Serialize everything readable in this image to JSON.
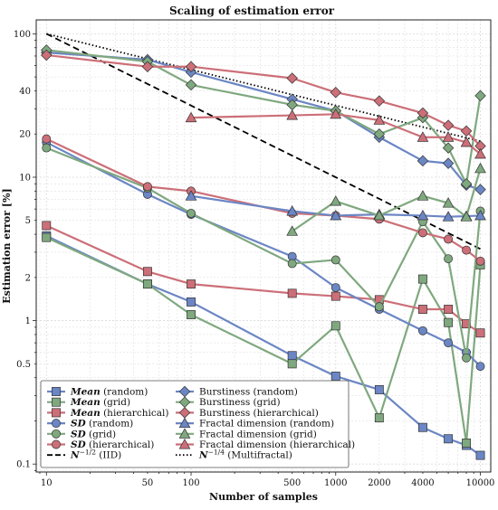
{
  "chart_data": {
    "type": "line",
    "title": "Scaling of estimation error",
    "xlabel": "Number of samples",
    "ylabel": "Estimation error [%]",
    "x_scale": "log",
    "y_scale": "log",
    "xlim": [
      8.5,
      11800
    ],
    "ylim": [
      0.088,
      125
    ],
    "grid": true,
    "legend_position": "bottom-left",
    "x_ticks": [
      10,
      50,
      100,
      500,
      1000,
      2000,
      4000,
      10000
    ],
    "x_tick_labels": [
      "10",
      "50",
      "100",
      "500",
      "1000",
      "2000",
      "4000",
      "10000"
    ],
    "y_ticks": [
      0.1,
      0.5,
      1,
      2,
      5,
      10,
      20,
      40,
      100
    ],
    "y_tick_labels": [
      "0.1",
      "0.5",
      "1",
      "2",
      "5",
      "10",
      "20",
      "40",
      "100"
    ],
    "colors": {
      "random": "#6b86c4",
      "grid": "#7fa87f",
      "hierarchical": "#cc6f78"
    },
    "x": [
      10,
      50,
      100,
      500,
      1000,
      2000,
      4000,
      6000,
      8000,
      10000
    ],
    "series": [
      {
        "name": "Mean (random)",
        "label_italic": "Mean",
        "label_rest": " (random)",
        "color": "random",
        "marker": "square",
        "style": "solid",
        "values": [
          3.9,
          1.8,
          1.35,
          0.57,
          0.41,
          0.33,
          0.18,
          0.15,
          0.135,
          0.115
        ]
      },
      {
        "name": "Mean (grid)",
        "label_italic": "Mean",
        "label_rest": " (grid)",
        "color": "grid",
        "marker": "square",
        "style": "solid",
        "values": [
          3.8,
          1.8,
          1.1,
          0.5,
          0.92,
          0.21,
          1.95,
          0.97,
          0.14,
          2.45
        ]
      },
      {
        "name": "Mean (hierarchical)",
        "label_italic": "Mean",
        "label_rest": " (hierarchical)",
        "color": "hierarchical",
        "marker": "square",
        "style": "solid",
        "values": [
          4.6,
          2.2,
          1.8,
          1.55,
          1.48,
          1.4,
          1.2,
          1.2,
          0.95,
          0.82
        ]
      },
      {
        "name": "SD (random)",
        "label_italic": "SD",
        "label_rest": " (random)",
        "color": "random",
        "marker": "circle",
        "style": "solid",
        "values": [
          17.5,
          7.6,
          5.5,
          2.8,
          1.7,
          1.2,
          0.85,
          0.7,
          0.6,
          0.48
        ]
      },
      {
        "name": "SD (grid)",
        "label_italic": "SD",
        "label_rest": " (grid)",
        "color": "grid",
        "marker": "circle",
        "style": "solid",
        "values": [
          16.0,
          8.4,
          5.6,
          2.5,
          2.65,
          1.25,
          4.9,
          2.7,
          0.55,
          5.8
        ]
      },
      {
        "name": "SD (hierarchical)",
        "label_italic": "SD",
        "label_rest": " (hierarchical)",
        "color": "hierarchical",
        "marker": "circle",
        "style": "solid",
        "values": [
          18.5,
          8.6,
          8.0,
          5.6,
          5.4,
          5.1,
          4.1,
          3.7,
          3.1,
          2.6
        ]
      },
      {
        "name": "Burstiness (random)",
        "label_italic": "",
        "label_rest": "Burstiness (random)",
        "color": "random",
        "marker": "diamond",
        "style": "solid",
        "values": [
          74,
          66,
          54,
          35,
          29,
          19,
          13,
          12.5,
          8.8,
          8.2
        ]
      },
      {
        "name": "Burstiness (grid)",
        "label_italic": "",
        "label_rest": "Burstiness (grid)",
        "color": "grid",
        "marker": "diamond",
        "style": "solid",
        "values": [
          77,
          64,
          44,
          32,
          29,
          20,
          26,
          16,
          9,
          37
        ]
      },
      {
        "name": "Burstiness (hierarchical)",
        "label_italic": "",
        "label_rest": "Burstiness (hierarchical)",
        "color": "hierarchical",
        "marker": "diamond",
        "style": "solid",
        "values": [
          71,
          59,
          59,
          49,
          39,
          34,
          28,
          23,
          21,
          16.5
        ]
      },
      {
        "name": "Fractal dimension (random)",
        "label_italic": "",
        "label_rest": "Fractal dimension (random)",
        "color": "random",
        "marker": "triangle",
        "style": "solid",
        "values": [
          null,
          null,
          7.4,
          5.8,
          5.4,
          5.5,
          5.4,
          5.3,
          5.35,
          5.4
        ]
      },
      {
        "name": "Fractal dimension (grid)",
        "label_italic": "",
        "label_rest": "Fractal dimension (grid)",
        "color": "grid",
        "marker": "triangle",
        "style": "solid",
        "values": [
          null,
          null,
          null,
          4.2,
          6.8,
          5.4,
          7.4,
          6.6,
          5.3,
          11.5
        ]
      },
      {
        "name": "Fractal dimension (hierarchical)",
        "label_italic": "",
        "label_rest": "Fractal dimension (hierarchical)",
        "color": "hierarchical",
        "marker": "triangle",
        "style": "solid",
        "values": [
          null,
          null,
          26,
          27,
          27.5,
          25,
          19,
          19,
          17.5,
          14.5
        ]
      }
    ],
    "reference_lines": [
      {
        "name": "N^-1/2 (IID)",
        "label_base": "N",
        "label_exp": "−1/2",
        "label_rest": " (IID)",
        "style": "dashed",
        "x": [
          10,
          10000
        ],
        "values": [
          100,
          3.16
        ]
      },
      {
        "name": "N^-1/4 (Multifractal)",
        "label_base": "N",
        "label_exp": "−1/4",
        "label_rest": " (Multifractal)",
        "style": "dotted",
        "x": [
          10,
          10000
        ],
        "values": [
          100,
          17.8
        ]
      }
    ]
  }
}
